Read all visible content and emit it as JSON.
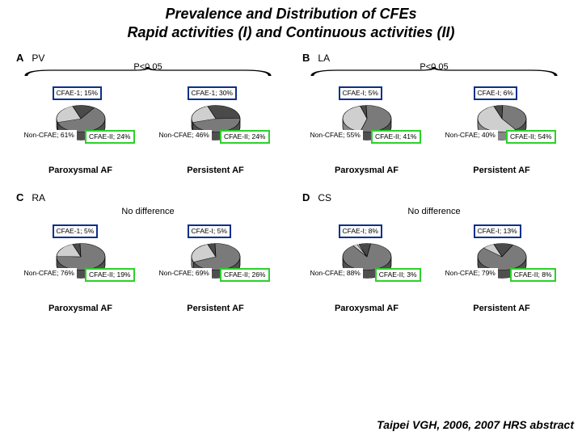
{
  "title_line1": "Prevalence and Distribution of CFEs",
  "title_line2": "Rapid activities (I) and Continuous activities (II)",
  "title_fontsize": 18,
  "footer": "Taipei VGH, 2006, 2007 HRS abstract",
  "footer_fontsize": 14,
  "colors": {
    "non_cfae": "#7a7a7a",
    "cfae_i": "#4a4a4a",
    "cfae_ii": "#cfcfcf",
    "box_blue": "#0b2f8a",
    "box_green": "#2bd12b",
    "text": "#000000",
    "bg": "#ffffff",
    "stroke": "#000000"
  },
  "pie_radius": 30,
  "pie_tilt_scale_y": 0.55,
  "pie_depth": 10,
  "panels": {
    "A": {
      "letter": "A",
      "region": "PV",
      "stat": "P<0.05",
      "stat_style": "brace",
      "sub": {
        "paroxysmal": {
          "label": "Paroxysmal AF",
          "slices": {
            "non_cfae": 61,
            "cfae_i": 15,
            "cfae_ii": 24
          },
          "labels": {
            "non_cfae": "Non-CFAE; 61%",
            "cfae_i": "CFAE-1; 15%",
            "cfae_ii": "CFAE-II; 24%"
          },
          "boxes": {
            "cfae_i": "blue",
            "cfae_ii": "green",
            "non_cfae": "plain"
          }
        },
        "persistent": {
          "label": "Persistent AF",
          "slices": {
            "non_cfae": 46,
            "cfae_i": 30,
            "cfae_ii": 24
          },
          "labels": {
            "non_cfae": "Non-CFAE; 46%",
            "cfae_i": "CFAE-1; 30%",
            "cfae_ii": "CFAE-II; 24%"
          },
          "boxes": {
            "cfae_i": "blue",
            "cfae_ii": "green",
            "non_cfae": "plain"
          }
        }
      }
    },
    "B": {
      "letter": "B",
      "region": "LA",
      "stat": "P<0.05",
      "stat_style": "brace",
      "sub": {
        "paroxysmal": {
          "label": "Paroxysmal AF",
          "slices": {
            "non_cfae": 55,
            "cfae_i": 5,
            "cfae_ii": 41
          },
          "labels": {
            "non_cfae": "Non-CFAE; 55%",
            "cfae_i": "CFAE-I; 5%",
            "cfae_ii": "CFAE-II; 41%"
          },
          "boxes": {
            "cfae_i": "blue",
            "cfae_ii": "green",
            "non_cfae": "plain"
          }
        },
        "persistent": {
          "label": "Persistent AF",
          "slices": {
            "non_cfae": 40,
            "cfae_i": 6,
            "cfae_ii": 54
          },
          "labels": {
            "non_cfae": "Non-CFAE; 40%",
            "cfae_i": "CFAE-I; 6%",
            "cfae_ii": "CFAE-II; 54%"
          },
          "boxes": {
            "cfae_i": "blue",
            "cfae_ii": "green",
            "non_cfae": "plain"
          }
        }
      }
    },
    "C": {
      "letter": "C",
      "region": "RA",
      "stat": "No difference",
      "stat_style": "plain",
      "sub": {
        "paroxysmal": {
          "label": "Paroxysmal AF",
          "slices": {
            "non_cfae": 76,
            "cfae_i": 5,
            "cfae_ii": 19
          },
          "labels": {
            "non_cfae": "Non-CFAE; 76%",
            "cfae_i": "CFAE-1; 5%",
            "cfae_ii": "CFAE-II; 19%"
          },
          "boxes": {
            "cfae_i": "blue",
            "cfae_ii": "green",
            "non_cfae": "plain"
          }
        },
        "persistent": {
          "label": "Persistent AF",
          "slices": {
            "non_cfae": 69,
            "cfae_i": 5,
            "cfae_ii": 26
          },
          "labels": {
            "non_cfae": "Non-CFAE; 69%",
            "cfae_i": "CFAE-I; 5%",
            "cfae_ii": "CFAE-II; 26%"
          },
          "boxes": {
            "cfae_i": "blue",
            "cfae_ii": "green",
            "non_cfae": "plain"
          }
        }
      }
    },
    "D": {
      "letter": "D",
      "region": "CS",
      "stat": "No difference",
      "stat_style": "plain",
      "sub": {
        "paroxysmal": {
          "label": "Paroxysmal AF",
          "slices": {
            "non_cfae": 88,
            "cfae_i": 8,
            "cfae_ii": 3
          },
          "labels": {
            "non_cfae": "Non-CFAE; 88%",
            "cfae_i": "CFAE-I; 8%",
            "cfae_ii": "CFAE-II; 3%"
          },
          "boxes": {
            "cfae_i": "blue",
            "cfae_ii": "green",
            "non_cfae": "plain"
          }
        },
        "persistent": {
          "label": "Persistent AF",
          "slices": {
            "non_cfae": 79,
            "cfae_i": 13,
            "cfae_ii": 8
          },
          "labels": {
            "non_cfae": "Non-CFAE; 79%",
            "cfae_i": "CFAE-I; 13%",
            "cfae_ii": "CFAE-II; 8%"
          },
          "boxes": {
            "cfae_i": "blue",
            "cfae_ii": "green",
            "non_cfae": "plain"
          }
        }
      }
    }
  }
}
